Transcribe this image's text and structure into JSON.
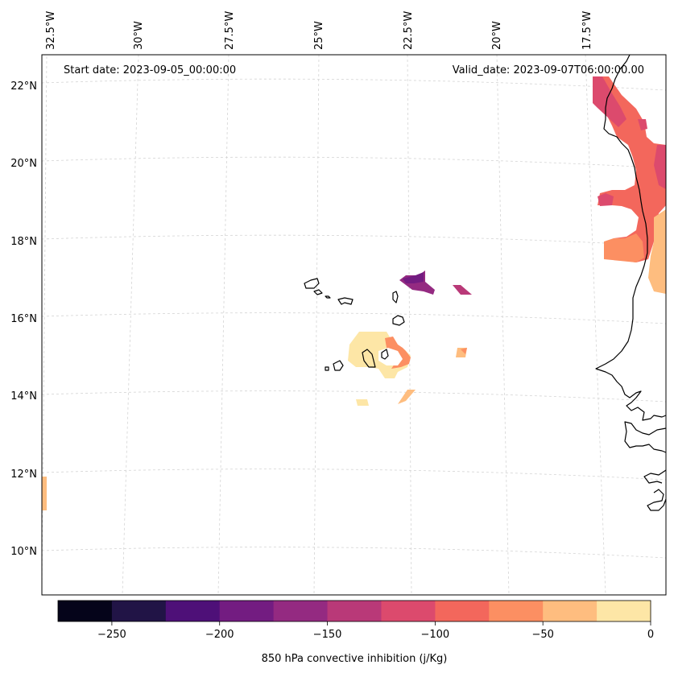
{
  "map": {
    "type": "weather-map",
    "projection": "lambert-conformal",
    "start_label": "Start date: 2023-09-05_00:00:00",
    "valid_label": "Valid_date: 2023-09-07T06:00:00.00",
    "lon_labels": [
      "32.5°W",
      "30°W",
      "27.5°W",
      "25°W",
      "22.5°W",
      "20°W",
      "17.5°W"
    ],
    "lat_labels": [
      "22°N",
      "20°N",
      "18°N",
      "16°N",
      "14°N",
      "12°N",
      "10°N"
    ],
    "gridlines": true
  },
  "colorbar": {
    "label": "850 hPa convective inhibition (j/Kg)",
    "min": -275,
    "max": 0,
    "ticks": [
      "−250",
      "−200",
      "−150",
      "−100",
      "−50",
      "0"
    ],
    "tick_values": [
      -250,
      -200,
      -150,
      -100,
      -50,
      0
    ],
    "levels": [
      -275,
      -250,
      -225,
      -200,
      -175,
      -150,
      -125,
      -100,
      -75,
      -50,
      -25,
      0
    ],
    "colors": [
      "#05041a",
      "#211446",
      "#4e1078",
      "#731c81",
      "#942a81",
      "#b93978",
      "#dc4a6d",
      "#f3675c",
      "#fc8f62",
      "#febd7f",
      "#fde6a6"
    ]
  },
  "colors": {
    "coast": "#000000",
    "grid": "#d4d4d4",
    "frame": "#000000"
  }
}
